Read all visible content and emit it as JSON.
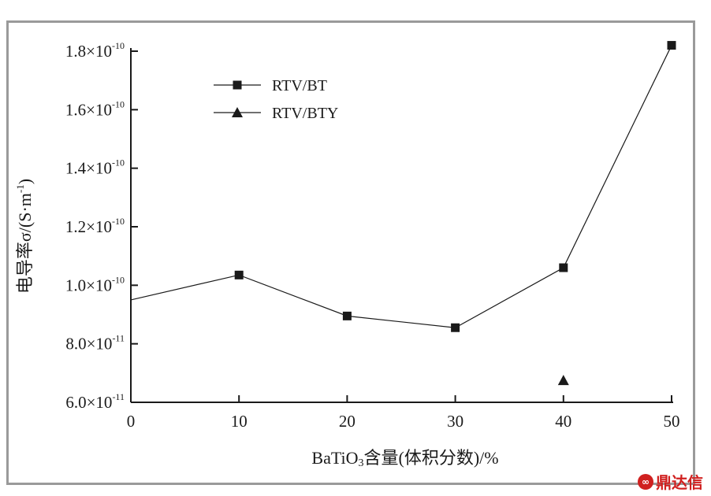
{
  "chart_data": {
    "type": "scatter",
    "xlabel": {
      "main": "BaTiO",
      "sub": "3",
      "rest": "含量(体积分数)/%"
    },
    "ylabel": {
      "main": "电导率σ/(S·m",
      "sup": "-1",
      "rest": ")"
    },
    "xlim": [
      0,
      50
    ],
    "ylim": [
      6e-11,
      1.8e-10
    ],
    "x_ticks": [
      {
        "value": 0,
        "label": "0"
      },
      {
        "value": 10,
        "label": "10"
      },
      {
        "value": 20,
        "label": "20"
      },
      {
        "value": 30,
        "label": "30"
      },
      {
        "value": 40,
        "label": "40"
      },
      {
        "value": 50,
        "label": "50"
      }
    ],
    "y_ticks": [
      {
        "value": 6e-11,
        "mant": "6.0×10",
        "exp": "-11"
      },
      {
        "value": 8e-11,
        "mant": "8.0×10",
        "exp": "-11"
      },
      {
        "value": 1e-10,
        "mant": "1.0×10",
        "exp": "-10"
      },
      {
        "value": 1.2e-10,
        "mant": "1.2×10",
        "exp": "-10"
      },
      {
        "value": 1.4e-10,
        "mant": "1.4×10",
        "exp": "-10"
      },
      {
        "value": 1.6e-10,
        "mant": "1.6×10",
        "exp": "-10"
      },
      {
        "value": 1.8e-10,
        "mant": "1.8×10",
        "exp": "-10"
      }
    ],
    "series": [
      {
        "name": "RTV/BT",
        "marker": "square",
        "line": true,
        "x": [
          0,
          10,
          20,
          30,
          40,
          50
        ],
        "y": [
          9.5e-11,
          1.035e-10,
          8.95e-11,
          8.55e-11,
          1.06e-10,
          1.82e-10
        ]
      },
      {
        "name": "RTV/BTY",
        "marker": "triangle",
        "line": false,
        "x": [
          40
        ],
        "y": [
          6.75e-11
        ]
      }
    ],
    "legend_position": "top-left",
    "grid": false
  },
  "watermark": {
    "text": "鼎达信",
    "icon": "wechat-icon"
  }
}
